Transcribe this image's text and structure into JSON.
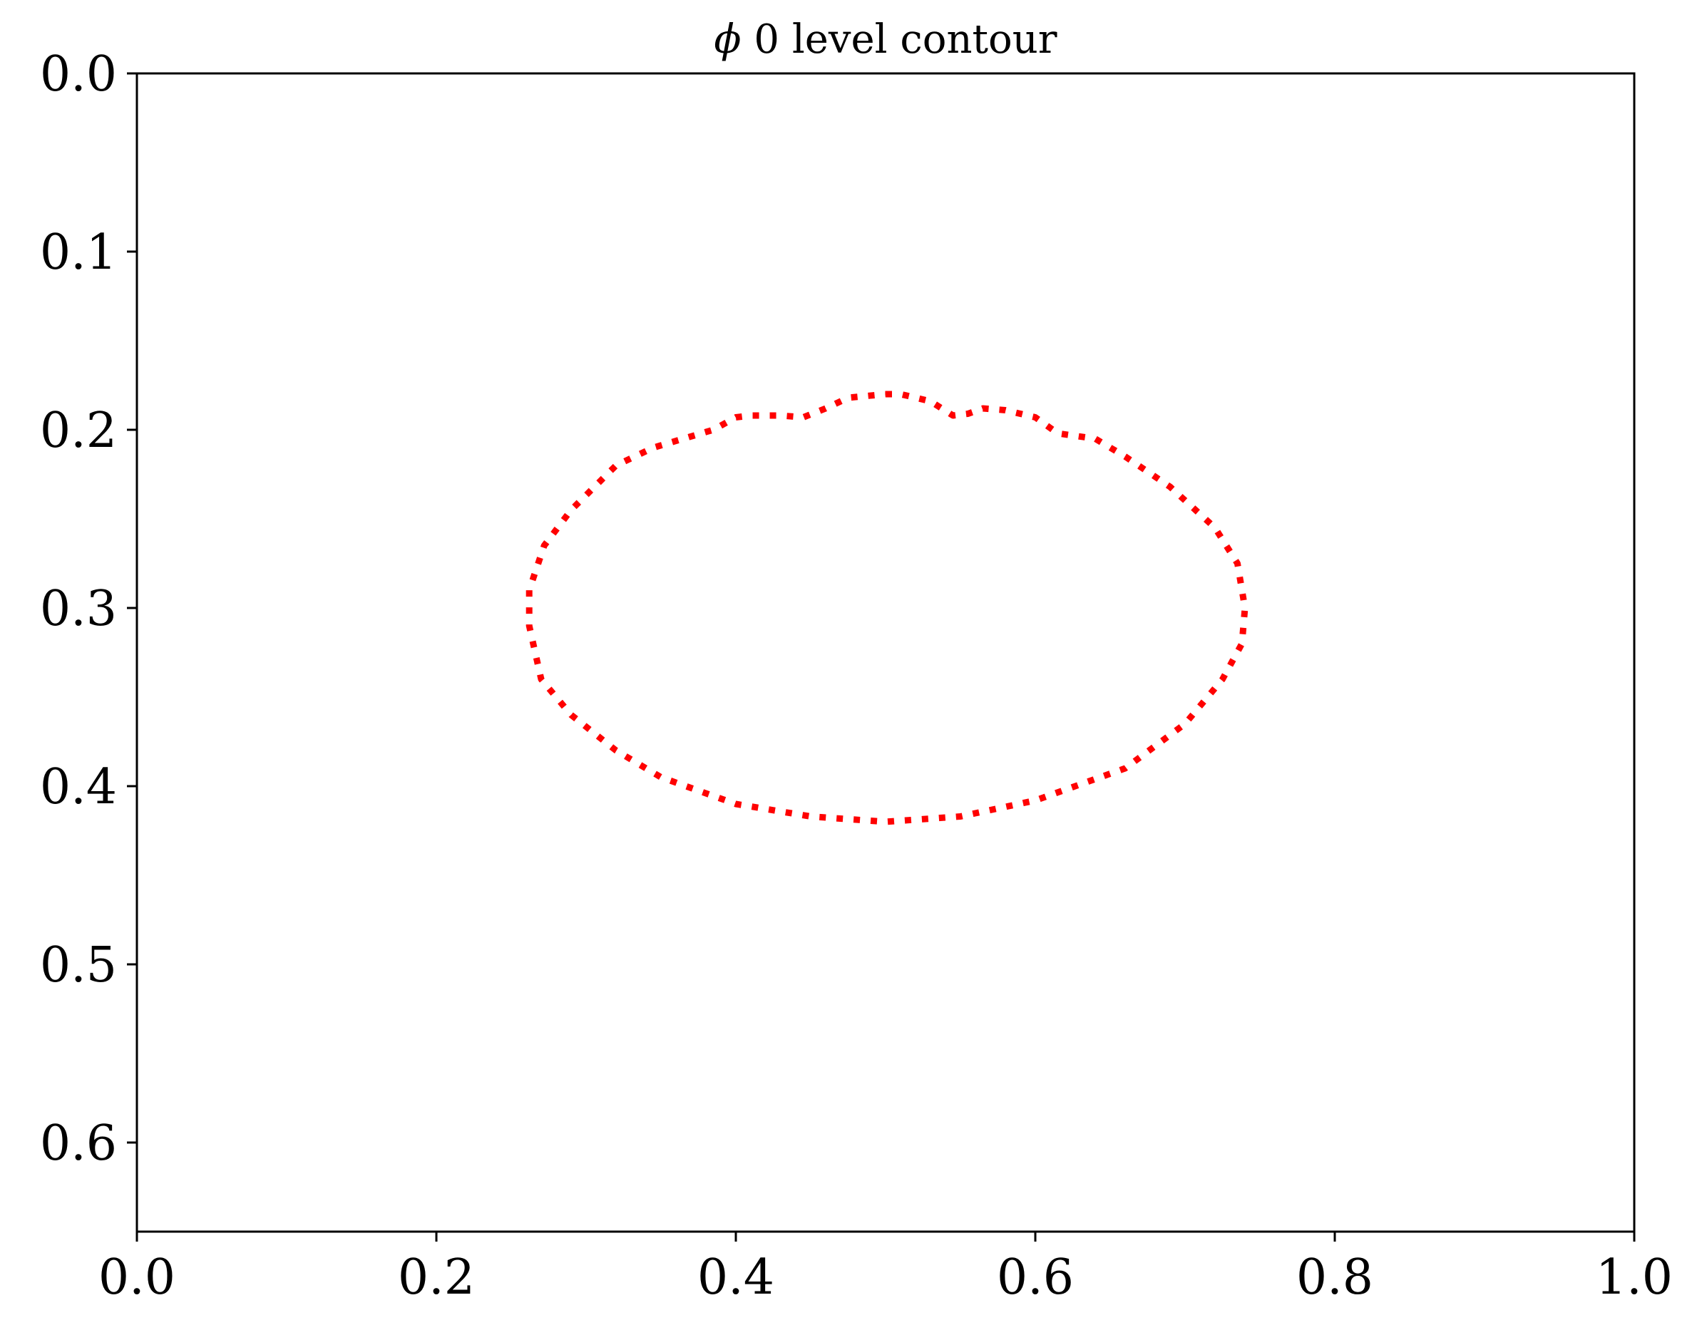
{
  "chart_data": {
    "type": "line",
    "title_symbol": "ϕ",
    "title_text": " 0 level contour",
    "xlabel": "",
    "ylabel": "",
    "xlim": [
      0.0,
      1.0
    ],
    "ylim": [
      0.65,
      0.0
    ],
    "y_axis_inverted": true,
    "grid": false,
    "x_ticks": [
      "0.0",
      "0.2",
      "0.4",
      "0.6",
      "0.8",
      "1.0"
    ],
    "y_ticks": [
      "0.0",
      "0.1",
      "0.2",
      "0.3",
      "0.4",
      "0.5",
      "0.6"
    ],
    "series": [
      {
        "style": "dotted",
        "color": "#ff0000",
        "closed": true,
        "x": [
          0.5,
          0.51,
          0.53,
          0.545,
          0.555,
          0.565,
          0.58,
          0.6,
          0.615,
          0.64,
          0.66,
          0.69,
          0.72,
          0.735,
          0.74,
          0.738,
          0.725,
          0.7,
          0.66,
          0.6,
          0.55,
          0.5,
          0.45,
          0.4,
          0.35,
          0.32,
          0.29,
          0.27,
          0.262,
          0.262,
          0.272,
          0.29,
          0.32,
          0.345,
          0.385,
          0.4,
          0.41,
          0.43,
          0.445,
          0.46,
          0.475
        ],
        "y": [
          0.18,
          0.18,
          0.184,
          0.192,
          0.191,
          0.188,
          0.189,
          0.193,
          0.202,
          0.205,
          0.215,
          0.232,
          0.255,
          0.275,
          0.3,
          0.32,
          0.34,
          0.365,
          0.39,
          0.408,
          0.417,
          0.42,
          0.417,
          0.41,
          0.395,
          0.38,
          0.36,
          0.34,
          0.31,
          0.29,
          0.265,
          0.245,
          0.22,
          0.21,
          0.2,
          0.193,
          0.192,
          0.192,
          0.193,
          0.188,
          0.182
        ]
      }
    ]
  }
}
